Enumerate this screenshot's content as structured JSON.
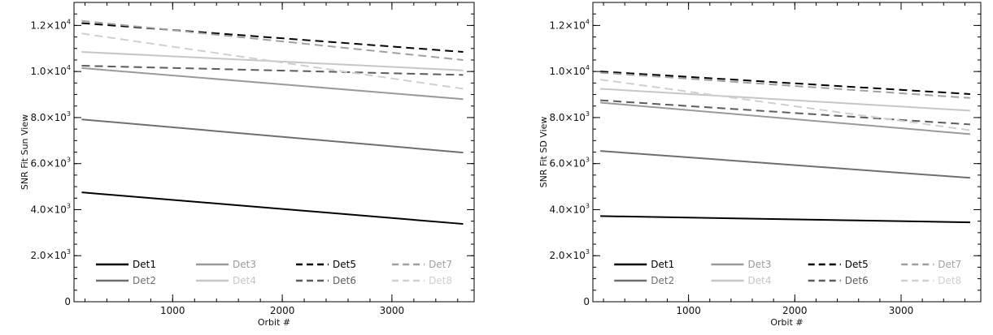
{
  "chart_data": [
    {
      "type": "line",
      "ylabel": "SNR Fit Sun View",
      "xlabel": "Orbit #",
      "xlim": [
        100,
        3750
      ],
      "ylim": [
        0,
        13000
      ],
      "x_ticks": [
        1000,
        2000,
        3000
      ],
      "y_ticks": [
        {
          "value": 0,
          "mant": "0",
          "exp": ""
        },
        {
          "value": 2000,
          "mant": "2.0×10",
          "exp": "3"
        },
        {
          "value": 4000,
          "mant": "4.0×10",
          "exp": "3"
        },
        {
          "value": 6000,
          "mant": "6.0×10",
          "exp": "3"
        },
        {
          "value": 8000,
          "mant": "8.0×10",
          "exp": "3"
        },
        {
          "value": 10000,
          "mant": "1.0×10",
          "exp": "4"
        },
        {
          "value": 12000,
          "mant": "1.2×10",
          "exp": "4"
        }
      ],
      "series": [
        {
          "name": "Det1",
          "x": [
            170,
            3650
          ],
          "values": [
            4750,
            3380
          ],
          "color": "#000000",
          "dash": "solid"
        },
        {
          "name": "Det2",
          "x": [
            170,
            3650
          ],
          "values": [
            7920,
            6480
          ],
          "color": "#6e6e6e",
          "dash": "solid"
        },
        {
          "name": "Det3",
          "x": [
            170,
            3650
          ],
          "values": [
            10150,
            8800
          ],
          "color": "#9a9a9a",
          "dash": "solid"
        },
        {
          "name": "Det4",
          "x": [
            170,
            3650
          ],
          "values": [
            10850,
            10050
          ],
          "color": "#c6c6c6",
          "dash": "solid"
        },
        {
          "name": "Det5",
          "x": [
            170,
            3650
          ],
          "values": [
            12100,
            10850
          ],
          "color": "#000000",
          "dash": "dashed"
        },
        {
          "name": "Det6",
          "x": [
            170,
            3650
          ],
          "values": [
            10250,
            9850
          ],
          "color": "#5c5c5c",
          "dash": "dashed"
        },
        {
          "name": "Det7",
          "x": [
            170,
            3650
          ],
          "values": [
            12200,
            10500
          ],
          "color": "#a0a0a0",
          "dash": "dashed"
        },
        {
          "name": "Det8",
          "x": [
            170,
            3650
          ],
          "values": [
            11650,
            9250
          ],
          "color": "#cfcfcf",
          "dash": "dashed"
        }
      ]
    },
    {
      "type": "line",
      "ylabel": "SNR Fit SD View",
      "xlabel": "Orbit #",
      "xlim": [
        100,
        3750
      ],
      "ylim": [
        0,
        13000
      ],
      "x_ticks": [
        1000,
        2000,
        3000
      ],
      "y_ticks": [
        {
          "value": 0,
          "mant": "0",
          "exp": ""
        },
        {
          "value": 2000,
          "mant": "2.0×10",
          "exp": "3"
        },
        {
          "value": 4000,
          "mant": "4.0×10",
          "exp": "3"
        },
        {
          "value": 6000,
          "mant": "6.0×10",
          "exp": "3"
        },
        {
          "value": 8000,
          "mant": "8.0×10",
          "exp": "3"
        },
        {
          "value": 10000,
          "mant": "1.0×10",
          "exp": "4"
        },
        {
          "value": 12000,
          "mant": "1.2×10",
          "exp": "4"
        }
      ],
      "series": [
        {
          "name": "Det1",
          "x": [
            170,
            3650
          ],
          "values": [
            3720,
            3450
          ],
          "color": "#000000",
          "dash": "solid"
        },
        {
          "name": "Det2",
          "x": [
            170,
            3650
          ],
          "values": [
            6550,
            5380
          ],
          "color": "#6e6e6e",
          "dash": "solid"
        },
        {
          "name": "Det3",
          "x": [
            170,
            3650
          ],
          "values": [
            8650,
            7280
          ],
          "color": "#9a9a9a",
          "dash": "solid"
        },
        {
          "name": "Det4",
          "x": [
            170,
            3650
          ],
          "values": [
            9250,
            8300
          ],
          "color": "#c6c6c6",
          "dash": "solid"
        },
        {
          "name": "Det5",
          "x": [
            170,
            3650
          ],
          "values": [
            10000,
            9020
          ],
          "color": "#000000",
          "dash": "dashed"
        },
        {
          "name": "Det6",
          "x": [
            170,
            3650
          ],
          "values": [
            8750,
            7700
          ],
          "color": "#5c5c5c",
          "dash": "dashed"
        },
        {
          "name": "Det7",
          "x": [
            170,
            3650
          ],
          "values": [
            9950,
            8850
          ],
          "color": "#a0a0a0",
          "dash": "dashed"
        },
        {
          "name": "Det8",
          "x": [
            170,
            3650
          ],
          "values": [
            9650,
            7450
          ],
          "color": "#cfcfcf",
          "dash": "dashed"
        }
      ]
    }
  ]
}
